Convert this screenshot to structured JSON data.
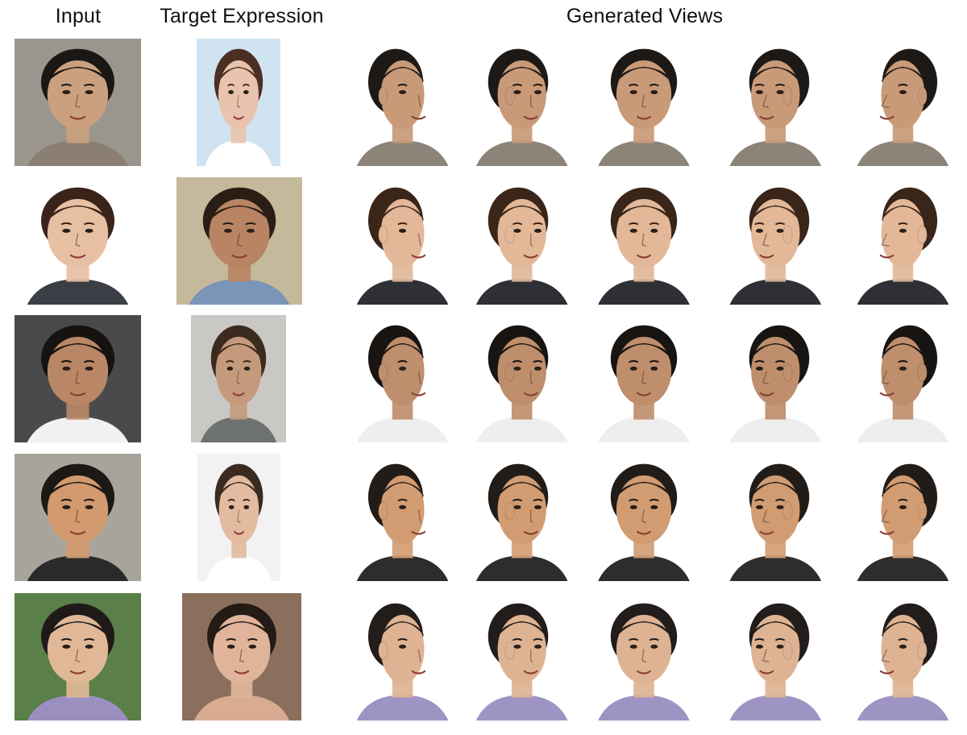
{
  "headers": {
    "input": "Input",
    "target": "Target Expression",
    "generated": "Generated Views"
  },
  "rows": [
    {
      "input": {
        "bg": "#9a968e",
        "skin": "#caa07e",
        "hair": "#1b1714",
        "shirt": "#8a7f72"
      },
      "target": {
        "bg": "#cfe3f0",
        "skin": "#e9c3ad",
        "hair": "#4a2f22",
        "shirt": "#ffffff"
      },
      "views": {
        "skin": "#c99a78",
        "hair": "#1d1916",
        "shirt": "#8c8478"
      }
    },
    {
      "input": {
        "bg": "#ffffff",
        "skin": "#e7bfa3",
        "hair": "#3a2318",
        "shirt": "#3b3e44"
      },
      "target": {
        "bg": "#c4b99a",
        "skin": "#b98463",
        "hair": "#2a1d16",
        "shirt": "#7a95b8"
      },
      "views": {
        "skin": "#e2b899",
        "hair": "#3a2519",
        "shirt": "#2e3035"
      }
    },
    {
      "input": {
        "bg": "#4a4a4c",
        "skin": "#b98766",
        "hair": "#151210",
        "shirt": "#f1f1f1"
      },
      "target": {
        "bg": "#c9c8c4",
        "skin": "#c59a7c",
        "hair": "#3c2a1f",
        "shirt": "#6e7270"
      },
      "views": {
        "skin": "#bf8e6c",
        "hair": "#171412",
        "shirt": "#eeeeee"
      }
    },
    {
      "input": {
        "bg": "#a7a49c",
        "skin": "#d29a6e",
        "hair": "#1c1814",
        "shirt": "#2b2a2a"
      },
      "target": {
        "bg": "#f2f2f2",
        "skin": "#e3bba1",
        "hair": "#3b2a22",
        "shirt": "#ffffff"
      },
      "views": {
        "skin": "#d29c72",
        "hair": "#221c18",
        "shirt": "#2f2d2b"
      }
    },
    {
      "input": {
        "bg": "#5a7f49",
        "skin": "#e0b897",
        "hair": "#1f1a18",
        "shirt": "#9b8fc0"
      },
      "target": {
        "bg": "#8a6f5c",
        "skin": "#e0b49a",
        "hair": "#241a16",
        "shirt": "#d8ab92"
      },
      "views": {
        "skin": "#ddb393",
        "hair": "#221c1a",
        "shirt": "#9e94c4"
      }
    }
  ]
}
